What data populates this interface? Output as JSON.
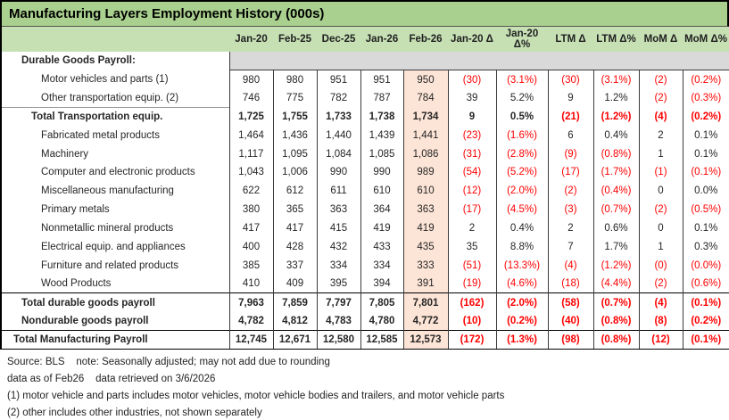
{
  "title": "Manufacturing Layers Employment History (000s)",
  "colors": {
    "title_bg": "#a9d08e",
    "header_bg": "#c6e0b4",
    "highlight_bg": "#fce4d6",
    "section_bg": "#d9d9d9",
    "negative": "#ff0000"
  },
  "chart_data": {
    "type": "table",
    "title": "Manufacturing Layers Employment History (000s)",
    "columns": [
      "Jan-20",
      "Feb-25",
      "Dec-25",
      "Jan-26",
      "Feb-26",
      "Jan-20 Δ",
      "Jan-20 Δ%",
      "LTM Δ",
      "LTM Δ%",
      "MoM Δ",
      "MoM Δ%"
    ],
    "highlight_column": "Feb-26",
    "rows": [
      {
        "label": "Durable Goods Payroll:",
        "level": 1,
        "bold": true,
        "section": true,
        "values": []
      },
      {
        "label": "Motor vehicles and parts (1)",
        "level": 3,
        "values": [
          "980",
          "980",
          "951",
          "951",
          "950",
          "(30)",
          "(3.1%)",
          "(30)",
          "(3.1%)",
          "(2)",
          "(0.2%)"
        ]
      },
      {
        "label": "Other transportation equip. (2)",
        "level": 3,
        "values": [
          "746",
          "775",
          "782",
          "787",
          "784",
          "39",
          "5.2%",
          "9",
          "1.2%",
          "(2)",
          "(0.3%)"
        ]
      },
      {
        "label": "Total Transportation equip.",
        "level": 2,
        "bold": true,
        "label_topline": true,
        "values": [
          "1,725",
          "1,755",
          "1,733",
          "1,738",
          "1,734",
          "9",
          "0.5%",
          "(21)",
          "(1.2%)",
          "(4)",
          "(0.2%)"
        ]
      },
      {
        "label": "Fabricated metal products",
        "level": 3,
        "values": [
          "1,464",
          "1,436",
          "1,440",
          "1,439",
          "1,441",
          "(23)",
          "(1.6%)",
          "6",
          "0.4%",
          "2",
          "0.1%"
        ]
      },
      {
        "label": "Machinery",
        "level": 3,
        "values": [
          "1,117",
          "1,095",
          "1,084",
          "1,085",
          "1,086",
          "(31)",
          "(2.8%)",
          "(9)",
          "(0.8%)",
          "1",
          "0.1%"
        ]
      },
      {
        "label": "Computer and electronic products",
        "level": 3,
        "values": [
          "1,043",
          "1,006",
          "990",
          "990",
          "989",
          "(54)",
          "(5.2%)",
          "(17)",
          "(1.7%)",
          "(1)",
          "(0.1%)"
        ]
      },
      {
        "label": "Miscellaneous manufacturing",
        "level": 3,
        "values": [
          "622",
          "612",
          "611",
          "610",
          "610",
          "(12)",
          "(2.0%)",
          "(2)",
          "(0.4%)",
          "0",
          "0.0%"
        ]
      },
      {
        "label": "Primary metals",
        "level": 3,
        "values": [
          "380",
          "365",
          "363",
          "364",
          "363",
          "(17)",
          "(4.5%)",
          "(3)",
          "(0.7%)",
          "(2)",
          "(0.5%)"
        ]
      },
      {
        "label": "Nonmetallic mineral products",
        "level": 3,
        "values": [
          "417",
          "417",
          "415",
          "419",
          "419",
          "2",
          "0.4%",
          "2",
          "0.6%",
          "0",
          "0.1%"
        ]
      },
      {
        "label": "Electrical equip. and appliances",
        "level": 3,
        "values": [
          "400",
          "428",
          "432",
          "433",
          "435",
          "35",
          "8.8%",
          "7",
          "1.7%",
          "1",
          "0.3%"
        ]
      },
      {
        "label": "Furniture and related products",
        "level": 3,
        "values": [
          "385",
          "337",
          "334",
          "334",
          "333",
          "(51)",
          "(13.3%)",
          "(4)",
          "(1.2%)",
          "(0)",
          "(0.0%)"
        ]
      },
      {
        "label": "Wood Products",
        "level": 3,
        "values": [
          "410",
          "409",
          "395",
          "394",
          "391",
          "(19)",
          "(4.6%)",
          "(18)",
          "(4.4%)",
          "(2)",
          "(0.6%)"
        ]
      },
      {
        "label": "Total durable goods payroll",
        "level": 1,
        "bold": true,
        "topline": true,
        "values": [
          "7,963",
          "7,859",
          "7,797",
          "7,805",
          "7,801",
          "(162)",
          "(2.0%)",
          "(58)",
          "(0.7%)",
          "(4)",
          "(0.1%)"
        ]
      },
      {
        "label": "Nondurable goods payroll",
        "level": 1,
        "bold": true,
        "values": [
          "4,782",
          "4,812",
          "4,783",
          "4,780",
          "4,772",
          "(10)",
          "(0.2%)",
          "(40)",
          "(0.8%)",
          "(8)",
          "(0.2%)"
        ]
      },
      {
        "label": "Total Manufacturing Payroll",
        "level": 0,
        "bold": true,
        "topline": true,
        "bottomline": true,
        "values": [
          "12,745",
          "12,671",
          "12,580",
          "12,585",
          "12,573",
          "(172)",
          "(1.3%)",
          "(98)",
          "(0.8%)",
          "(12)",
          "(0.1%)"
        ]
      }
    ]
  },
  "footnotes": [
    "Source: BLS    note: Seasonally adjusted; may not add due to rounding",
    "data as of Feb26    data retrieved on 3/6/2026",
    "(1) motor vehicle and parts includes motor vehicles, motor vehicle bodies and trailers, and motor vehicle parts",
    "(2) other includes other industries, not shown separately"
  ]
}
